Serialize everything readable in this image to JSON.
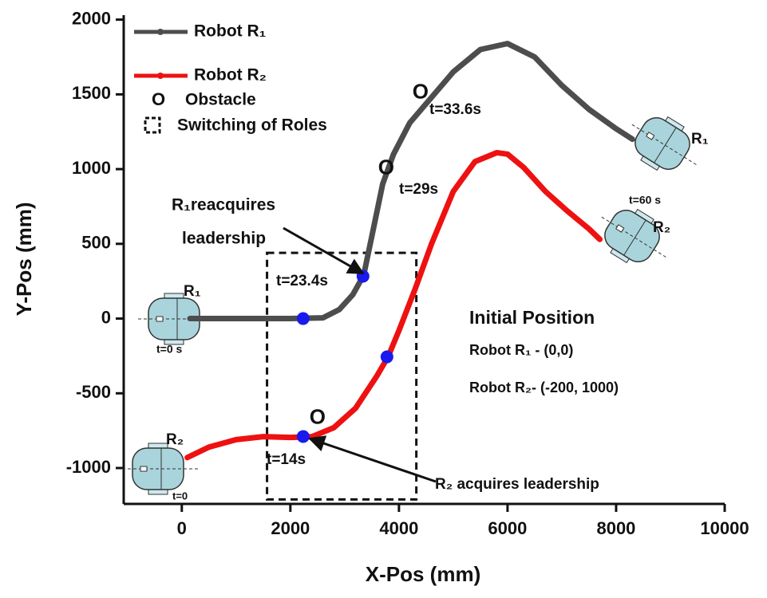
{
  "chart_data": {
    "type": "line",
    "x_label": "X-Pos (mm)",
    "y_label": "Y-Pos (mm)",
    "xlim": [
      -1070,
      10000
    ],
    "ylim": [
      -1240,
      2030
    ],
    "xticks": [
      0,
      2000,
      4000,
      6000,
      8000,
      10000
    ],
    "yticks": [
      -1000,
      -500,
      0,
      500,
      1000,
      1500,
      2000
    ],
    "series": [
      {
        "name": "Robot R₁",
        "color": "#4d4d4d",
        "x": [
          150,
          1000,
          2000,
          2600,
          2900,
          3150,
          3350,
          3500,
          3700,
          3900,
          4200,
          4600,
          5000,
          5500,
          6000,
          6500,
          7000,
          7500,
          8000,
          8300
        ],
        "values": [
          0,
          0,
          0,
          5,
          60,
          160,
          290,
          550,
          900,
          1100,
          1310,
          1480,
          1650,
          1800,
          1840,
          1750,
          1560,
          1400,
          1270,
          1200
        ]
      },
      {
        "name": "Robot R₂",
        "color": "#ee1111",
        "x": [
          100,
          500,
          1000,
          1500,
          2000,
          2400,
          2800,
          3200,
          3600,
          3800,
          4000,
          4300,
          4600,
          5000,
          5400,
          5800,
          6000,
          6300,
          6700,
          7100,
          7500,
          7700
        ],
        "values": [
          -930,
          -860,
          -810,
          -790,
          -795,
          -790,
          -730,
          -600,
          -380,
          -255,
          -80,
          200,
          500,
          850,
          1050,
          1110,
          1100,
          1010,
          850,
          720,
          600,
          530
        ]
      }
    ],
    "key_points": {
      "color": "#1a1aee",
      "x": [
        2235,
        3338,
        3779,
        2235
      ],
      "values": [
        0,
        283,
        -256,
        -789
      ]
    },
    "obstacles": {
      "marker": "O",
      "x": [
        2500,
        3765,
        4397
      ],
      "values": [
        -667,
        1003,
        1509
      ]
    },
    "switching_box": {
      "x": [
        1570,
        4320
      ],
      "values": [
        440,
        -1210
      ]
    },
    "legend_items": [
      "Obstacle",
      "Switching of Roles"
    ],
    "time_labels": [
      "t=33.6s",
      "t=29s",
      "t=23.4s",
      "t=14s",
      "t=0 s",
      "t=0",
      "t=60 s"
    ],
    "robot_labels": [
      "R₁",
      "R₂",
      "R₁",
      "R₂"
    ],
    "annotations": [
      "R₁reacquires",
      "leadership",
      "R₂ acquires  leadership"
    ],
    "initial_position": [
      "Initial Position",
      "Robot R₁ - (0,0)",
      "Robot R₂- (-200, 1000)"
    ]
  }
}
